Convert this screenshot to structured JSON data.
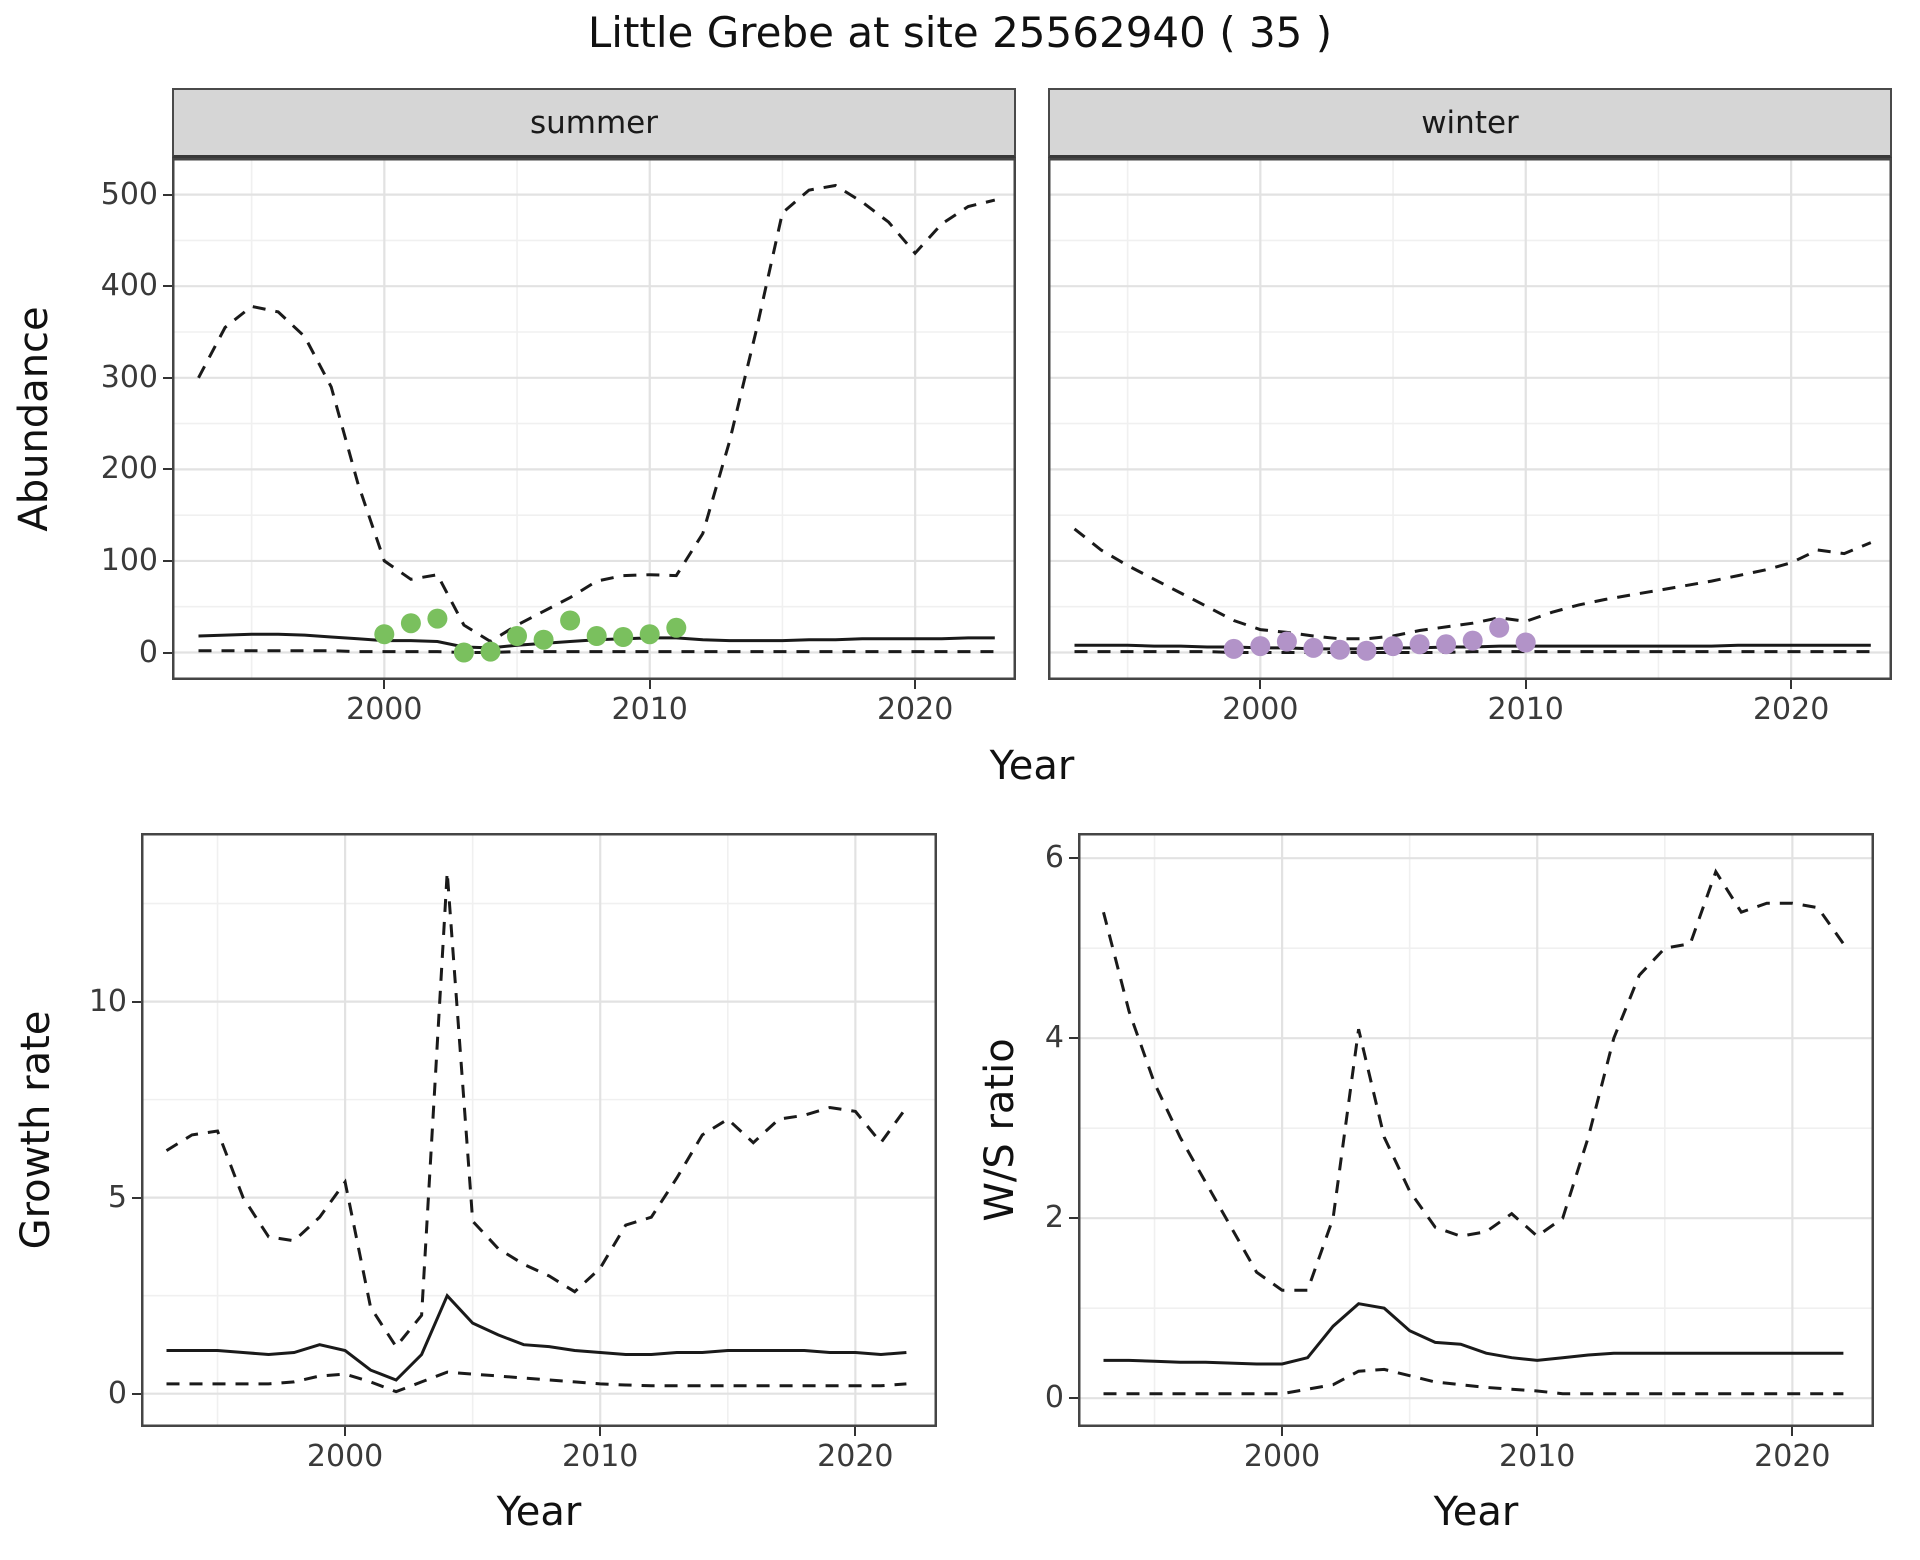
{
  "title": "Little Grebe at site 25562940 ( 35 )",
  "labels": {
    "abundance": "Abundance",
    "year_top": "Year",
    "growth_rate": "Growth rate",
    "ws_ratio": "W/S ratio",
    "year_bottom_left": "Year",
    "year_bottom_right": "Year"
  },
  "colors": {
    "line": "#1a1a1a",
    "summer_points": "#7ac05e",
    "winter_points": "#b293c8",
    "strip_bg": "#d6d6d6",
    "major_grid": "#e2e2e2",
    "minor_grid": "#f0f0f0",
    "panel_border": "#454545"
  },
  "chart_data": [
    {
      "id": "summer",
      "type": "line",
      "strip_label": "summer",
      "xlabel": "Year",
      "ylabel": "Abundance",
      "xlim": [
        1992,
        2023.8
      ],
      "ylim": [
        -30,
        540
      ],
      "xticks": [
        2000,
        2010,
        2020
      ],
      "yticks": [
        0,
        100,
        200,
        300,
        400,
        500
      ],
      "xminor": [
        1995,
        2005,
        2015
      ],
      "yminor": [
        50,
        150,
        250,
        350,
        450
      ],
      "x": [
        1993,
        1994,
        1995,
        1996,
        1997,
        1998,
        1999,
        2000,
        2001,
        2002,
        2003,
        2004,
        2005,
        2006,
        2007,
        2008,
        2009,
        2010,
        2011,
        2012,
        2013,
        2014,
        2015,
        2016,
        2017,
        2018,
        2019,
        2020,
        2021,
        2022,
        2023
      ],
      "series": [
        {
          "name": "upper-ci",
          "kind": "line",
          "dashed": true,
          "values": [
            300,
            355,
            378,
            372,
            345,
            290,
            185,
            100,
            80,
            85,
            30,
            12,
            30,
            45,
            60,
            78,
            84,
            85,
            84,
            130,
            230,
            350,
            480,
            505,
            510,
            492,
            470,
            436,
            468,
            487,
            494
          ]
        },
        {
          "name": "median",
          "kind": "line",
          "dashed": false,
          "values": [
            18,
            19,
            20,
            20,
            19,
            17,
            15,
            13,
            13,
            12,
            6,
            5,
            8,
            10,
            12,
            14,
            15,
            16,
            16,
            14,
            13,
            13,
            13,
            14,
            14,
            15,
            15,
            15,
            15,
            16,
            16
          ]
        },
        {
          "name": "lower-ci",
          "kind": "line",
          "dashed": true,
          "values": [
            2,
            2,
            2,
            2,
            2,
            2,
            1,
            1,
            1,
            1,
            0,
            0,
            1,
            1,
            1,
            1,
            1,
            1,
            1,
            1,
            1,
            1,
            1,
            1,
            1,
            1,
            1,
            1,
            1,
            1,
            1
          ]
        }
      ],
      "points": {
        "name": "summer-observations",
        "color": "#7ac05e",
        "x": [
          2000,
          2001,
          2002,
          2003,
          2004,
          2005,
          2006,
          2007,
          2008,
          2009,
          2010,
          2011
        ],
        "y": [
          20,
          32,
          37,
          0,
          1,
          18,
          14,
          35,
          18,
          17,
          20,
          27
        ]
      }
    },
    {
      "id": "winter",
      "type": "line",
      "strip_label": "winter",
      "xlabel": "Year",
      "ylabel": "Abundance",
      "xlim": [
        1992,
        2023.8
      ],
      "ylim": [
        -30,
        540
      ],
      "xticks": [
        2000,
        2010,
        2020
      ],
      "yticks": [
        0,
        100,
        200,
        300,
        400,
        500
      ],
      "xminor": [
        1995,
        2005,
        2015
      ],
      "yminor": [
        50,
        150,
        250,
        350,
        450
      ],
      "x": [
        1993,
        1994,
        1995,
        1996,
        1997,
        1998,
        1999,
        2000,
        2001,
        2002,
        2003,
        2004,
        2005,
        2006,
        2007,
        2008,
        2009,
        2010,
        2011,
        2012,
        2013,
        2014,
        2015,
        2016,
        2017,
        2018,
        2019,
        2020,
        2021,
        2022,
        2023
      ],
      "series": [
        {
          "name": "upper-ci",
          "kind": "line",
          "dashed": true,
          "values": [
            135,
            112,
            95,
            80,
            65,
            50,
            35,
            25,
            22,
            18,
            15,
            15,
            18,
            24,
            28,
            32,
            38,
            34,
            44,
            52,
            58,
            63,
            68,
            73,
            78,
            84,
            90,
            98,
            112,
            108,
            120
          ]
        },
        {
          "name": "median",
          "kind": "line",
          "dashed": false,
          "values": [
            8,
            8,
            8,
            7,
            7,
            6,
            6,
            5,
            5,
            4,
            4,
            4,
            5,
            5,
            6,
            6,
            7,
            7,
            7,
            7,
            7,
            7,
            7,
            7,
            7,
            8,
            8,
            8,
            8,
            8,
            8
          ]
        },
        {
          "name": "lower-ci",
          "kind": "line",
          "dashed": true,
          "values": [
            1,
            1,
            1,
            1,
            1,
            1,
            0,
            0,
            0,
            0,
            0,
            0,
            0,
            0,
            0,
            1,
            1,
            1,
            1,
            1,
            1,
            1,
            1,
            1,
            1,
            1,
            1,
            1,
            1,
            1,
            1
          ]
        }
      ],
      "points": {
        "name": "winter-observations",
        "color": "#b293c8",
        "x": [
          1999,
          2000,
          2001,
          2002,
          2003,
          2004,
          2005,
          2006,
          2007,
          2008,
          2009,
          2010
        ],
        "y": [
          4,
          7,
          12,
          5,
          3,
          2,
          7,
          9,
          9,
          13,
          27,
          11
        ]
      }
    },
    {
      "id": "growth",
      "type": "line",
      "strip_label": "",
      "xlabel": "Year",
      "ylabel": "Growth rate",
      "xlim": [
        1992,
        2023.2
      ],
      "ylim": [
        -0.85,
        14.3
      ],
      "xticks": [
        2000,
        2010,
        2020
      ],
      "yticks": [
        0,
        5,
        10
      ],
      "xminor": [
        1995,
        2005,
        2015
      ],
      "yminor": [
        2.5,
        7.5,
        12.5
      ],
      "x": [
        1993,
        1994,
        1995,
        1996,
        1997,
        1998,
        1999,
        2000,
        2001,
        2002,
        2003,
        2004,
        2005,
        2006,
        2007,
        2008,
        2009,
        2010,
        2011,
        2012,
        2013,
        2014,
        2015,
        2016,
        2017,
        2018,
        2019,
        2020,
        2021,
        2022
      ],
      "series": [
        {
          "name": "upper-ci",
          "kind": "line",
          "dashed": true,
          "values": [
            6.2,
            6.6,
            6.7,
            5.0,
            4.0,
            3.9,
            4.5,
            5.4,
            2.2,
            1.2,
            2.0,
            13.3,
            4.4,
            3.7,
            3.3,
            3.0,
            2.6,
            3.2,
            4.3,
            4.5,
            5.5,
            6.6,
            7.0,
            6.4,
            7.0,
            7.1,
            7.3,
            7.2,
            6.4,
            7.3
          ]
        },
        {
          "name": "median",
          "kind": "line",
          "dashed": false,
          "values": [
            1.1,
            1.1,
            1.1,
            1.05,
            1.0,
            1.05,
            1.25,
            1.1,
            0.6,
            0.35,
            1.0,
            2.5,
            1.8,
            1.5,
            1.25,
            1.2,
            1.1,
            1.05,
            1.0,
            1.0,
            1.05,
            1.05,
            1.1,
            1.1,
            1.1,
            1.1,
            1.05,
            1.05,
            1.0,
            1.05
          ]
        },
        {
          "name": "lower-ci",
          "kind": "line",
          "dashed": true,
          "values": [
            0.25,
            0.25,
            0.25,
            0.25,
            0.25,
            0.3,
            0.45,
            0.5,
            0.3,
            0.05,
            0.3,
            0.55,
            0.5,
            0.45,
            0.4,
            0.35,
            0.3,
            0.25,
            0.22,
            0.2,
            0.2,
            0.2,
            0.2,
            0.2,
            0.2,
            0.2,
            0.2,
            0.2,
            0.2,
            0.25
          ]
        }
      ]
    },
    {
      "id": "ws",
      "type": "line",
      "strip_label": "",
      "xlabel": "Year",
      "ylabel": "W/S ratio",
      "xlim": [
        1992,
        2023.2
      ],
      "ylim": [
        -0.32,
        6.28
      ],
      "xticks": [
        2000,
        2010,
        2020
      ],
      "yticks": [
        0,
        2,
        4,
        6
      ],
      "xminor": [
        1995,
        2005,
        2015
      ],
      "yminor": [
        1,
        3,
        5
      ],
      "x": [
        1993,
        1994,
        1995,
        1996,
        1997,
        1998,
        1999,
        2000,
        2001,
        2002,
        2003,
        2004,
        2005,
        2006,
        2007,
        2008,
        2009,
        2010,
        2011,
        2012,
        2013,
        2014,
        2015,
        2016,
        2017,
        2018,
        2019,
        2020,
        2021,
        2022
      ],
      "series": [
        {
          "name": "upper-ci",
          "kind": "line",
          "dashed": true,
          "values": [
            5.4,
            4.3,
            3.5,
            2.9,
            2.4,
            1.9,
            1.4,
            1.2,
            1.2,
            2.0,
            4.1,
            2.9,
            2.3,
            1.9,
            1.8,
            1.85,
            2.05,
            1.8,
            2.0,
            2.9,
            4.0,
            4.7,
            5.0,
            5.05,
            5.85,
            5.4,
            5.5,
            5.5,
            5.45,
            5.05
          ]
        },
        {
          "name": "median",
          "kind": "line",
          "dashed": false,
          "values": [
            0.42,
            0.42,
            0.41,
            0.4,
            0.4,
            0.39,
            0.38,
            0.38,
            0.45,
            0.8,
            1.05,
            1.0,
            0.75,
            0.62,
            0.6,
            0.5,
            0.45,
            0.42,
            0.45,
            0.48,
            0.5,
            0.5,
            0.5,
            0.5,
            0.5,
            0.5,
            0.5,
            0.5,
            0.5,
            0.5
          ]
        },
        {
          "name": "lower-ci",
          "kind": "line",
          "dashed": true,
          "values": [
            0.05,
            0.05,
            0.05,
            0.05,
            0.05,
            0.05,
            0.05,
            0.05,
            0.1,
            0.15,
            0.3,
            0.32,
            0.25,
            0.18,
            0.15,
            0.12,
            0.1,
            0.08,
            0.05,
            0.05,
            0.05,
            0.05,
            0.05,
            0.05,
            0.05,
            0.05,
            0.05,
            0.05,
            0.05,
            0.05
          ]
        }
      ]
    }
  ]
}
